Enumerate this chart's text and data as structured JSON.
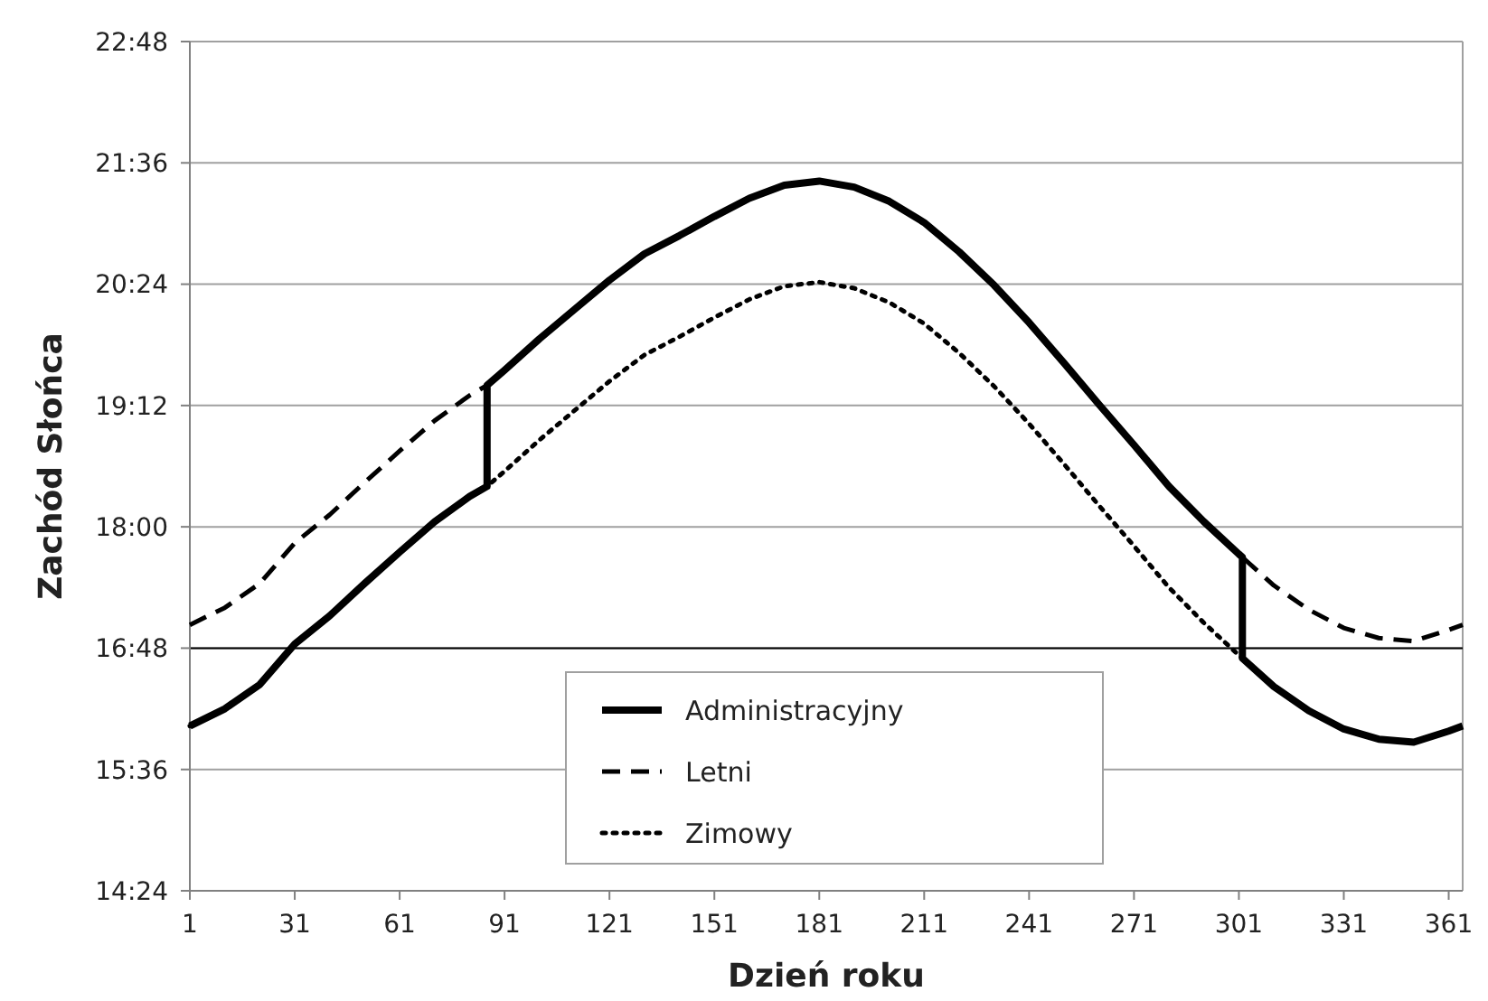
{
  "chart_data": {
    "type": "line",
    "xlabel": "Dzień roku",
    "ylabel": "Zachód Słońca",
    "xlim": [
      1,
      365
    ],
    "ylim": [
      14.4,
      22.8
    ],
    "xticks": [
      1,
      31,
      61,
      91,
      121,
      151,
      181,
      211,
      241,
      271,
      301,
      331,
      361
    ],
    "yticks": [
      {
        "value": 14.4,
        "label": "14:24"
      },
      {
        "value": 15.6,
        "label": "15:36"
      },
      {
        "value": 16.8,
        "label": "16:48"
      },
      {
        "value": 18,
        "label": "18:00"
      },
      {
        "value": 19.2,
        "label": "19:12"
      },
      {
        "value": 20.4,
        "label": "20:24"
      },
      {
        "value": 21.6,
        "label": "21:36"
      },
      {
        "value": 22.8,
        "label": "22:48"
      }
    ],
    "grid": "y",
    "legend": "bottom",
    "marker": "none",
    "ref_lines": [
      {
        "axis": "y",
        "value": 16.8,
        "color": "#000000"
      }
    ],
    "series": [
      {
        "name": "Letni",
        "color": "#000000",
        "line_style": "dashed",
        "x": [
          1,
          11,
          21,
          31,
          41,
          51,
          61,
          71,
          81,
          86,
          91,
          101,
          111,
          121,
          131,
          141,
          151,
          161,
          171,
          181,
          191,
          201,
          211,
          221,
          231,
          241,
          251,
          261,
          271,
          281,
          291,
          301,
          311,
          321,
          331,
          341,
          351,
          361,
          365
        ],
        "values": [
          17.03,
          17.2,
          17.44,
          17.84,
          18.12,
          18.44,
          18.75,
          19.05,
          19.3,
          19.4,
          19.55,
          19.86,
          20.15,
          20.44,
          20.7,
          20.88,
          21.07,
          21.25,
          21.38,
          21.42,
          21.36,
          21.22,
          21.01,
          20.72,
          20.39,
          20.02,
          19.62,
          19.21,
          18.81,
          18.4,
          18.05,
          17.73,
          17.42,
          17.18,
          17,
          16.9,
          16.87,
          16.98,
          17.03
        ]
      },
      {
        "name": "Zimowy",
        "color": "#000000",
        "line_style": "dotted",
        "x": [
          1,
          11,
          21,
          31,
          41,
          51,
          61,
          71,
          81,
          86,
          91,
          101,
          111,
          121,
          131,
          141,
          151,
          161,
          171,
          181,
          191,
          201,
          211,
          221,
          231,
          241,
          251,
          261,
          271,
          281,
          291,
          301,
          311,
          321,
          331,
          341,
          351,
          361,
          365
        ],
        "values": [
          16.03,
          16.2,
          16.44,
          16.84,
          17.12,
          17.44,
          17.75,
          18.05,
          18.3,
          18.4,
          18.55,
          18.86,
          19.15,
          19.44,
          19.7,
          19.88,
          20.07,
          20.25,
          20.38,
          20.42,
          20.36,
          20.22,
          20.01,
          19.72,
          19.39,
          19.02,
          18.62,
          18.21,
          17.81,
          17.4,
          17.05,
          16.73,
          16.42,
          16.18,
          16,
          15.9,
          15.87,
          15.98,
          16.03
        ]
      },
      {
        "name": "Administracyjny",
        "color": "#000000",
        "line_style": "solid",
        "x": [
          1,
          11,
          21,
          31,
          41,
          51,
          61,
          71,
          81,
          86,
          86,
          91,
          101,
          111,
          121,
          131,
          141,
          151,
          161,
          171,
          181,
          191,
          201,
          211,
          221,
          231,
          241,
          251,
          261,
          271,
          281,
          291,
          301,
          302,
          302,
          311,
          321,
          331,
          341,
          351,
          361,
          365
        ],
        "values": [
          16.03,
          16.2,
          16.44,
          16.84,
          17.12,
          17.44,
          17.75,
          18.05,
          18.3,
          18.4,
          19.4,
          19.55,
          19.86,
          20.15,
          20.44,
          20.7,
          20.88,
          21.07,
          21.25,
          21.38,
          21.42,
          21.36,
          21.22,
          21.01,
          20.72,
          20.39,
          20.02,
          19.62,
          19.21,
          18.81,
          18.4,
          18.05,
          17.73,
          17.7,
          16.7,
          16.42,
          16.18,
          16,
          15.9,
          15.87,
          15.98,
          16.03
        ]
      }
    ]
  }
}
